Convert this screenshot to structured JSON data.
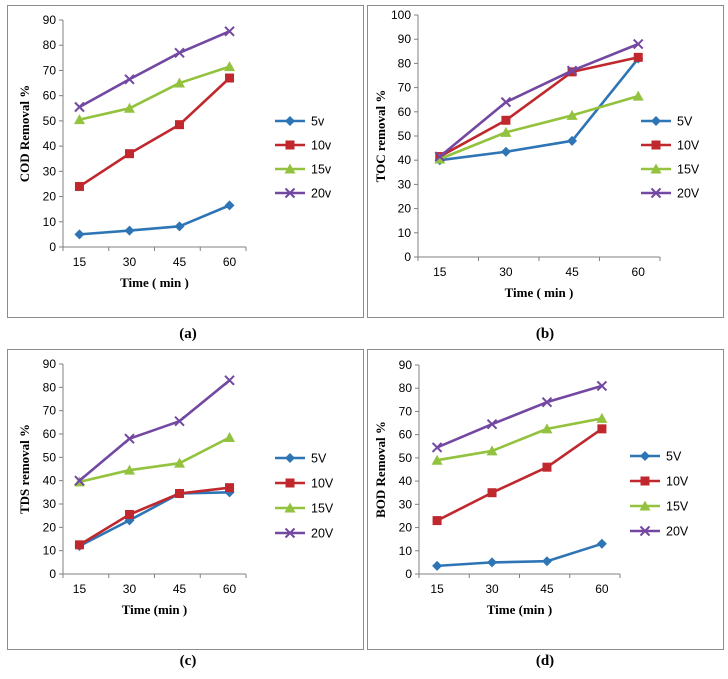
{
  "series_colors": [
    "#2e75b6",
    "#c0282d",
    "#92c23e",
    "#7248a2"
  ],
  "chart_data": [
    {
      "id": "a",
      "type": "line",
      "caption": "(a)",
      "xlabel": "Time ( min )",
      "ylabel": "COD Removal %",
      "categories": [
        "15",
        "30",
        "45",
        "60"
      ],
      "ylim": [
        0,
        90
      ],
      "ytick_step": 10,
      "grid": false,
      "legend_position": "right",
      "series": [
        {
          "name": "5v",
          "marker": "diamond",
          "values": [
            5,
            6.5,
            8.2,
            16.5
          ]
        },
        {
          "name": "10v",
          "marker": "square",
          "values": [
            24,
            37,
            48.5,
            67
          ]
        },
        {
          "name": "15v",
          "marker": "triangle",
          "values": [
            50.5,
            55,
            65,
            71.5
          ]
        },
        {
          "name": "20v",
          "marker": "x",
          "values": [
            55.5,
            66.5,
            77,
            85.5
          ]
        }
      ]
    },
    {
      "id": "b",
      "type": "line",
      "caption": "(b)",
      "xlabel": "Time ( min )",
      "ylabel": "TOC removal  %",
      "categories": [
        "15",
        "30",
        "45",
        "60"
      ],
      "ylim": [
        0,
        100
      ],
      "ytick_step": 10,
      "grid": false,
      "legend_position": "right",
      "series": [
        {
          "name": "5V",
          "marker": "diamond",
          "values": [
            40,
            43.5,
            48,
            82
          ]
        },
        {
          "name": "10V",
          "marker": "square",
          "values": [
            41.5,
            56.5,
            76.5,
            82.5
          ]
        },
        {
          "name": "15V",
          "marker": "triangle",
          "values": [
            40.5,
            51.5,
            58.5,
            66.5
          ]
        },
        {
          "name": "20V",
          "marker": "x",
          "values": [
            41.5,
            64,
            77,
            88
          ]
        }
      ]
    },
    {
      "id": "c",
      "type": "line",
      "caption": "(c)",
      "xlabel": "Time (min )",
      "ylabel": "TDS removal %",
      "categories": [
        "15",
        "30",
        "45",
        "60"
      ],
      "ylim": [
        0,
        90
      ],
      "ytick_step": 10,
      "grid": false,
      "legend_position": "right",
      "series": [
        {
          "name": "5V",
          "marker": "diamond",
          "values": [
            12,
            23,
            34.5,
            35
          ]
        },
        {
          "name": "10V",
          "marker": "square",
          "values": [
            12.5,
            25.5,
            34.5,
            37
          ]
        },
        {
          "name": "15V",
          "marker": "triangle",
          "values": [
            39.5,
            44.5,
            47.5,
            58.5
          ]
        },
        {
          "name": "20V",
          "marker": "x",
          "values": [
            40,
            58,
            65.5,
            83
          ]
        }
      ]
    },
    {
      "id": "d",
      "type": "line",
      "caption": "(d)",
      "xlabel": "Time (min )",
      "ylabel": "BOD Removal %",
      "categories": [
        "15",
        "30",
        "45",
        "60"
      ],
      "ylim": [
        0,
        90
      ],
      "ytick_step": 10,
      "grid": false,
      "legend_position": "right",
      "series": [
        {
          "name": "5V",
          "marker": "diamond",
          "values": [
            3.5,
            5,
            5.5,
            13
          ]
        },
        {
          "name": "10V",
          "marker": "square",
          "values": [
            23,
            35,
            46,
            62.5
          ]
        },
        {
          "name": "15V",
          "marker": "triangle",
          "values": [
            49,
            53,
            62.5,
            67
          ]
        },
        {
          "name": "20V",
          "marker": "x",
          "values": [
            54.5,
            64.5,
            74,
            81
          ]
        }
      ]
    }
  ]
}
